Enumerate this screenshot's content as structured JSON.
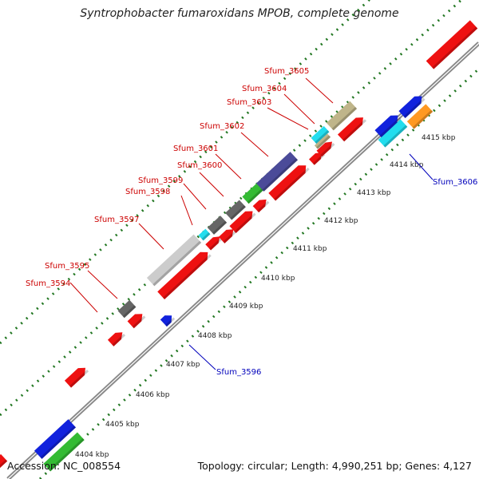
{
  "title": "Syntrophobacter fumaroxidans MPOB, complete genome",
  "accession": "Accession: NC_008554",
  "summary": "Topology: circular; Length: 4,990,251 bp; Genes: 4,127",
  "colors": {
    "red": "#ee1111",
    "grey": "#666666",
    "lightgrey": "#cccccc",
    "green": "#33bb33",
    "navy": "#4b4b99",
    "tan": "#bfb58a",
    "cyan": "#22ddee",
    "orange": "#ff9922",
    "blue": "#1122dd",
    "labelRed": "#cc0000",
    "labelBlue": "#0000bb",
    "dotGreen": "#227722",
    "backbone": "#888888"
  },
  "ticks": [
    "4404 kbp",
    "4405 kbp",
    "4406 kbp",
    "4407 kbp",
    "4408 kbp",
    "4409 kbp",
    "4410 kbp",
    "4411 kbp",
    "4412 kbp",
    "4413 kbp",
    "4414 kbp",
    "4415 kbp"
  ],
  "forward_genes": [
    {
      "name": "Sfum_3594",
      "color": "red"
    },
    {
      "name": "Sfum_3595",
      "color": "grey"
    },
    {
      "name": "Sfum_3597",
      "color": "lightgrey"
    },
    {
      "name": "Sfum_3598",
      "color": "cyan"
    },
    {
      "name": "Sfum_3599",
      "color": "grey"
    },
    {
      "name": "Sfum_3600",
      "color": "grey"
    },
    {
      "name": "Sfum_3601",
      "color": "green"
    },
    {
      "name": "Sfum_3602",
      "color": "navy"
    },
    {
      "name": "Sfum_3603",
      "color": "tan"
    },
    {
      "name": "Sfum_3604",
      "color": "cyan"
    },
    {
      "name": "Sfum_3605",
      "color": "tan"
    }
  ],
  "reverse_genes": [
    {
      "name": "Sfum_3596",
      "color": "blue"
    },
    {
      "name": "Sfum_3606",
      "color": "cyan"
    }
  ]
}
